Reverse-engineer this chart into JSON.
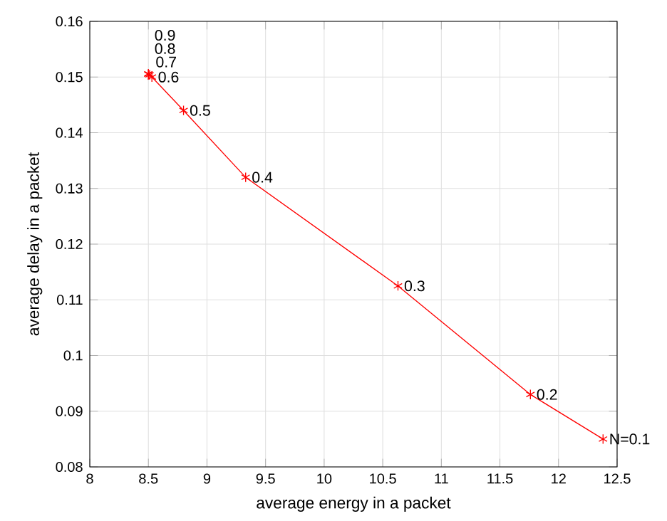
{
  "chart_data": {
    "type": "line",
    "xlabel": "average energy in a packet",
    "ylabel": "average delay in a packet",
    "x": [
      12.38,
      11.76,
      10.63,
      9.33,
      8.8,
      8.53,
      8.51,
      8.5,
      8.5
    ],
    "series": [
      {
        "color": "#ff0000",
        "values": [
          0.085,
          0.093,
          0.1125,
          0.132,
          0.144,
          0.15,
          0.1504,
          0.1505,
          0.1506
        ]
      }
    ],
    "xlim": [
      8,
      12.5
    ],
    "xticks": [
      8,
      8.5,
      9,
      9.5,
      10,
      10.5,
      11,
      11.5,
      12,
      12.5
    ],
    "ylim": [
      0.08,
      0.16
    ],
    "yticks": [
      0.08,
      0.09,
      0.1,
      0.11,
      0.12,
      0.13,
      0.14,
      0.15,
      0.16
    ],
    "grid": true,
    "marker": "cross",
    "line_style": "solid",
    "annotations": [
      {
        "text": "N=0.1",
        "x": 12.38,
        "y": 0.085
      },
      {
        "text": "0.2",
        "x": 11.76,
        "y": 0.093
      },
      {
        "text": "0.3",
        "x": 10.63,
        "y": 0.1125
      },
      {
        "text": "0.4",
        "x": 9.33,
        "y": 0.132
      },
      {
        "text": "0.5",
        "x": 8.8,
        "y": 0.144
      },
      {
        "text": "0.6",
        "x": 8.53,
        "y": 0.15
      },
      {
        "text": "0.7",
        "x": 8.51,
        "y": 0.1504
      },
      {
        "text": "0.8",
        "x": 8.5,
        "y": 0.1505
      },
      {
        "text": "0.9",
        "x": 8.5,
        "y": 0.1506
      }
    ]
  }
}
